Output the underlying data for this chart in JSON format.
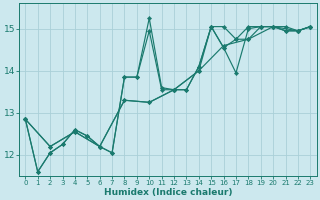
{
  "xlabel": "Humidex (Indice chaleur)",
  "bg_color": "#cce8ee",
  "line_color": "#1a7a6e",
  "grid_color": "#aad0d8",
  "xlim": [
    -0.5,
    23.5
  ],
  "ylim": [
    11.5,
    15.6
  ],
  "yticks": [
    12,
    13,
    14,
    15
  ],
  "xticks": [
    0,
    1,
    2,
    3,
    4,
    5,
    6,
    7,
    8,
    9,
    10,
    11,
    12,
    13,
    14,
    15,
    16,
    17,
    18,
    19,
    20,
    21,
    22,
    23
  ],
  "series1": [
    [
      0,
      12.85
    ],
    [
      1,
      11.6
    ],
    [
      2,
      12.05
    ],
    [
      3,
      12.25
    ],
    [
      4,
      12.6
    ],
    [
      5,
      12.45
    ],
    [
      6,
      12.2
    ],
    [
      7,
      12.05
    ],
    [
      8,
      13.85
    ],
    [
      9,
      13.85
    ],
    [
      10,
      15.25
    ],
    [
      11,
      13.6
    ],
    [
      12,
      13.55
    ],
    [
      13,
      13.55
    ],
    [
      14,
      14.1
    ],
    [
      15,
      15.05
    ],
    [
      16,
      14.55
    ],
    [
      17,
      13.95
    ],
    [
      18,
      15.0
    ],
    [
      19,
      15.05
    ],
    [
      20,
      15.05
    ],
    [
      21,
      14.95
    ],
    [
      22,
      14.95
    ],
    [
      23,
      15.05
    ]
  ],
  "series2": [
    [
      0,
      12.85
    ],
    [
      1,
      11.6
    ],
    [
      2,
      12.05
    ],
    [
      3,
      12.25
    ],
    [
      4,
      12.6
    ],
    [
      5,
      12.45
    ],
    [
      6,
      12.2
    ],
    [
      7,
      12.05
    ],
    [
      8,
      13.85
    ],
    [
      9,
      13.85
    ],
    [
      10,
      14.95
    ],
    [
      11,
      13.55
    ],
    [
      12,
      13.55
    ],
    [
      13,
      13.55
    ],
    [
      14,
      14.1
    ],
    [
      15,
      15.05
    ],
    [
      16,
      14.55
    ],
    [
      17,
      14.75
    ],
    [
      18,
      15.05
    ],
    [
      19,
      15.05
    ],
    [
      20,
      15.05
    ],
    [
      21,
      14.95
    ],
    [
      22,
      14.95
    ],
    [
      23,
      15.05
    ]
  ],
  "series3": [
    [
      0,
      12.85
    ],
    [
      2,
      12.2
    ],
    [
      4,
      12.55
    ],
    [
      6,
      12.2
    ],
    [
      8,
      13.3
    ],
    [
      10,
      13.25
    ],
    [
      12,
      13.55
    ],
    [
      14,
      14.0
    ],
    [
      16,
      14.6
    ],
    [
      18,
      14.75
    ],
    [
      20,
      15.05
    ],
    [
      22,
      14.95
    ],
    [
      23,
      15.05
    ]
  ],
  "series4": [
    [
      0,
      12.85
    ],
    [
      2,
      12.2
    ],
    [
      4,
      12.55
    ],
    [
      6,
      12.2
    ],
    [
      8,
      13.3
    ],
    [
      10,
      13.25
    ],
    [
      12,
      13.55
    ],
    [
      14,
      14.0
    ],
    [
      15,
      15.05
    ],
    [
      16,
      15.05
    ],
    [
      17,
      14.75
    ],
    [
      18,
      14.75
    ],
    [
      19,
      15.05
    ],
    [
      20,
      15.05
    ],
    [
      21,
      15.05
    ],
    [
      22,
      14.95
    ],
    [
      23,
      15.05
    ]
  ]
}
